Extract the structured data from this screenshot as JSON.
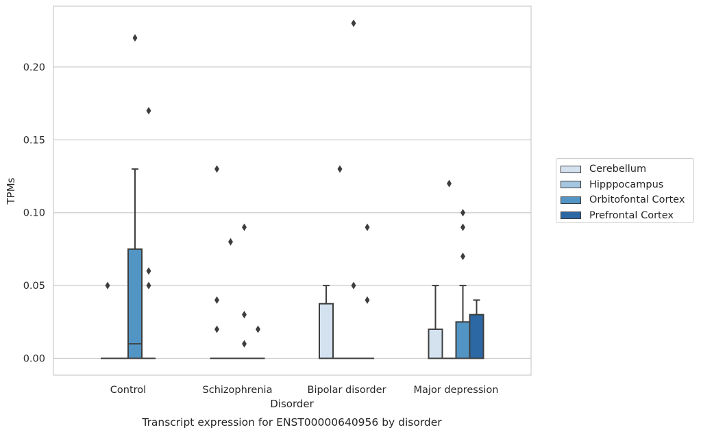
{
  "chart_data": {
    "type": "box",
    "xlabel": "Disorder",
    "ylabel": "TPMs",
    "caption": "Transcript expression for ENST00000640956 by disorder",
    "ylim": [
      -0.011,
      0.242
    ],
    "yticks": [
      "0.00",
      "0.05",
      "0.10",
      "0.15",
      "0.20"
    ],
    "categories": [
      "Control",
      "Schizophrenia",
      "Bipolar disorder",
      "Major depression"
    ],
    "legend_position": "right",
    "grid": true,
    "series": [
      {
        "name": "Cerebellum",
        "color": "#d4e2f0",
        "boxes": [
          {
            "category": "Control",
            "q1": 0,
            "median": 0,
            "q3": 0,
            "whisker_low": 0,
            "whisker_high": 0,
            "outliers": [
              0.05
            ]
          },
          {
            "category": "Schizophrenia",
            "q1": 0,
            "median": 0,
            "q3": 0,
            "whisker_low": 0,
            "whisker_high": 0,
            "outliers": [
              0.13,
              0.04,
              0.02
            ]
          },
          {
            "category": "Bipolar disorder",
            "q1": 0,
            "median": 0,
            "q3": 0.0375,
            "whisker_low": 0,
            "whisker_high": 0.05,
            "outliers": []
          },
          {
            "category": "Major depression",
            "q1": 0,
            "median": 0,
            "q3": 0.02,
            "whisker_low": 0,
            "whisker_high": 0.05,
            "outliers": []
          }
        ]
      },
      {
        "name": "Hipppocampus",
        "color": "#a4c6e0",
        "boxes": [
          {
            "category": "Control",
            "q1": 0,
            "median": 0,
            "q3": 0,
            "whisker_low": 0,
            "whisker_high": 0,
            "outliers": []
          },
          {
            "category": "Schizophrenia",
            "q1": 0,
            "median": 0,
            "q3": 0,
            "whisker_low": 0,
            "whisker_high": 0,
            "outliers": [
              0.08
            ]
          },
          {
            "category": "Bipolar disorder",
            "q1": 0,
            "median": 0,
            "q3": 0,
            "whisker_low": 0,
            "whisker_high": 0,
            "outliers": [
              0.13
            ]
          },
          {
            "category": "Major depression",
            "q1": 0,
            "median": 0,
            "q3": 0,
            "whisker_low": 0,
            "whisker_high": 0,
            "outliers": [
              0.12
            ]
          }
        ]
      },
      {
        "name": "Orbitofontal Cortex",
        "color": "#5295c4",
        "boxes": [
          {
            "category": "Control",
            "q1": 0,
            "median": 0.01,
            "q3": 0.075,
            "whisker_low": 0,
            "whisker_high": 0.13,
            "outliers": [
              0.22
            ]
          },
          {
            "category": "Schizophrenia",
            "q1": 0,
            "median": 0,
            "q3": 0,
            "whisker_low": 0,
            "whisker_high": 0,
            "outliers": [
              0.09,
              0.03,
              0.01
            ]
          },
          {
            "category": "Bipolar disorder",
            "q1": 0,
            "median": 0,
            "q3": 0,
            "whisker_low": 0,
            "whisker_high": 0,
            "outliers": [
              0.23,
              0.05
            ]
          },
          {
            "category": "Major depression",
            "q1": 0,
            "median": 0,
            "q3": 0.025,
            "whisker_low": 0,
            "whisker_high": 0.05,
            "outliers": [
              0.1,
              0.09,
              0.07
            ]
          }
        ]
      },
      {
        "name": "Prefrontal Cortex",
        "color": "#2c68a4",
        "boxes": [
          {
            "category": "Control",
            "q1": 0,
            "median": 0,
            "q3": 0,
            "whisker_low": 0,
            "whisker_high": 0,
            "outliers": [
              0.17,
              0.06,
              0.05
            ]
          },
          {
            "category": "Schizophrenia",
            "q1": 0,
            "median": 0,
            "q3": 0,
            "whisker_low": 0,
            "whisker_high": 0,
            "outliers": [
              0.02
            ]
          },
          {
            "category": "Bipolar disorder",
            "q1": 0,
            "median": 0,
            "q3": 0,
            "whisker_low": 0,
            "whisker_high": 0,
            "outliers": [
              0.09,
              0.04
            ]
          },
          {
            "category": "Major depression",
            "q1": 0,
            "median": 0,
            "q3": 0.03,
            "whisker_low": 0,
            "whisker_high": 0.04,
            "outliers": []
          }
        ]
      }
    ]
  }
}
